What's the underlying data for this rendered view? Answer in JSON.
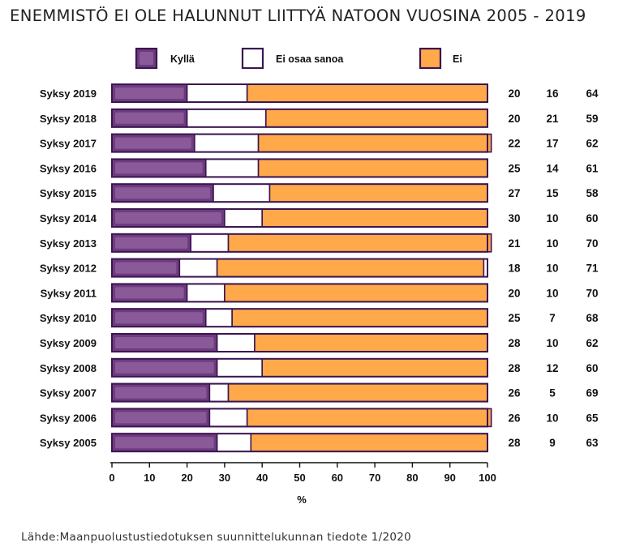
{
  "chart_data": {
    "type": "bar",
    "orientation": "horizontal",
    "stacked": true,
    "title": "ENEMMISTÖ EI OLE HALUNNUT LIITTYÄ NATOON VUOSINA 2005 - 2019",
    "xlabel": "%",
    "ylabel": "",
    "xlim": [
      0,
      100
    ],
    "x_ticks": [
      "0",
      "10",
      "20",
      "30",
      "40",
      "50",
      "60",
      "70",
      "80",
      "90",
      "100"
    ],
    "legend_position": "top",
    "grid": false,
    "categories": [
      "Syksy 2019",
      "Syksy 2018",
      "Syksy 2017",
      "Syksy 2016",
      "Syksy 2015",
      "Syksy 2014",
      "Syksy 2013",
      "Syksy 2012",
      "Syksy 2011",
      "Syksy 2010",
      "Syksy 2009",
      "Syksy 2008",
      "Syksy 2007",
      "Syksy 2006",
      "Syksy 2005"
    ],
    "series": [
      {
        "name": "Kyllä",
        "color": "#6e3c7e",
        "values": [
          20,
          20,
          22,
          25,
          27,
          30,
          21,
          18,
          20,
          25,
          28,
          28,
          26,
          26,
          28
        ]
      },
      {
        "name": "Ei osaa sanoa",
        "color": "#ffffff",
        "values": [
          16,
          21,
          17,
          14,
          15,
          10,
          10,
          10,
          10,
          7,
          10,
          12,
          5,
          10,
          9
        ]
      },
      {
        "name": "Ei",
        "color": "#ffa94a",
        "values": [
          64,
          59,
          62,
          61,
          58,
          60,
          70,
          71,
          70,
          68,
          62,
          60,
          69,
          65,
          63
        ]
      }
    ]
  },
  "source": "Lähde:Maanpuolustustiedotuksen suunnittelukunnan tiedote 1/2020",
  "colors": {
    "frame": "#3b1553",
    "kylla_highlight": "#8a5a98",
    "text": "#111111"
  }
}
